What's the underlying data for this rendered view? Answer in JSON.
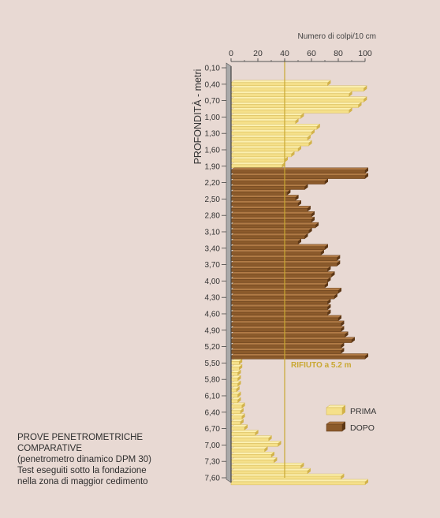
{
  "caption": {
    "line1": "PROVE PENETROMETRICHE",
    "line2": "COMPARATIVE",
    "line3": "(penetrometro dinamico DPM 30)",
    "line4": "Test eseguiti sotto la fondazione",
    "line5": "nella zona di maggior cedimento"
  },
  "chart_data": {
    "type": "bar",
    "orientation": "horizontal",
    "xlabel": "Numero di colpi/10 cm",
    "ylabel": "PROFONDITÀ - metri",
    "xlim": [
      0,
      100
    ],
    "x_ticks": [
      "0",
      "20",
      "40",
      "60",
      "80",
      "100"
    ],
    "depth_ticks": [
      "0,10",
      "0,40",
      "0,70",
      "1,00",
      "1,30",
      "1,60",
      "1,90",
      "2,20",
      "2,50",
      "2,80",
      "3,10",
      "3,40",
      "3,70",
      "4,00",
      "4,30",
      "4,60",
      "4,90",
      "5,20",
      "5,50",
      "5,80",
      "6,10",
      "6,40",
      "6,70",
      "7,00",
      "7,30",
      "7,60"
    ],
    "depth_range": [
      0.1,
      7.6
    ],
    "depth_step": 0.1,
    "reference_line": {
      "value": 40,
      "label": "RIFIUTO a 5.2 m"
    },
    "legend_position": "bottom-right",
    "colors": {
      "prima": "#f5e08a",
      "prima_top": "#fbefb0",
      "prima_side": "#d2b24a",
      "dopo": "#8b5a2b",
      "dopo_top": "#b07a45",
      "dopo_side": "#5c3614",
      "refline": "#c9a832",
      "axis": "#555555",
      "bg": "#e8d9d3"
    },
    "series": [
      {
        "name": "PRIMA",
        "start_depth": 0.2,
        "values": [
          0,
          0,
          72,
          99,
          88,
          99,
          95,
          88,
          52,
          48,
          64,
          60,
          57,
          58,
          50,
          45,
          40,
          38,
          32,
          26,
          24,
          21,
          19,
          17,
          13,
          9,
          7,
          5,
          4,
          3,
          3,
          3,
          3,
          2,
          3,
          3,
          4,
          3,
          3,
          3,
          4,
          3,
          4,
          4,
          4,
          4,
          5,
          5,
          4,
          4,
          6,
          7,
          7,
          6,
          6,
          5,
          5,
          5,
          4,
          5,
          5,
          8,
          7,
          8,
          7,
          10,
          18,
          28,
          35,
          25,
          30,
          32,
          52,
          57,
          82,
          100
        ]
      },
      {
        "name": "DOPO",
        "start_depth": 2.0,
        "values": [
          100,
          100,
          70,
          55,
          42,
          48,
          50,
          57,
          60,
          60,
          63,
          58,
          55,
          50,
          70,
          67,
          79,
          79,
          72,
          75,
          72,
          70,
          80,
          77,
          72,
          72,
          72,
          80,
          82,
          82,
          85,
          90,
          82,
          82,
          100
        ]
      }
    ]
  }
}
